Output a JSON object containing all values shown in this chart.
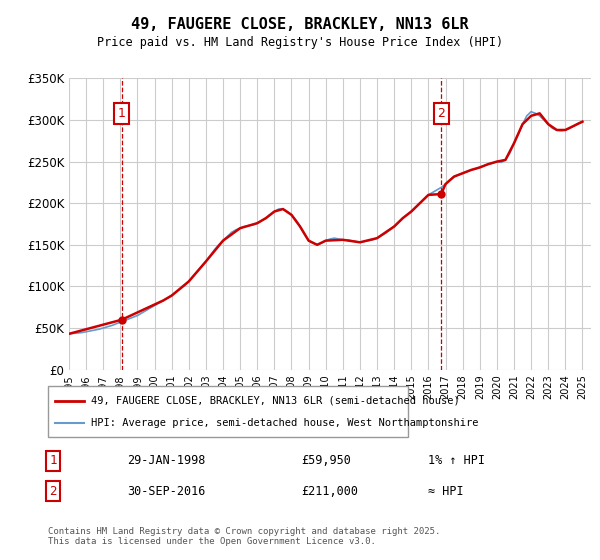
{
  "title": "49, FAUGERE CLOSE, BRACKLEY, NN13 6LR",
  "subtitle": "Price paid vs. HM Land Registry's House Price Index (HPI)",
  "ylabel_ticks": [
    "£0",
    "£50K",
    "£100K",
    "£150K",
    "£200K",
    "£250K",
    "£300K",
    "£350K"
  ],
  "ylim": [
    0,
    350000
  ],
  "xlim_start": 1995.0,
  "xlim_end": 2025.5,
  "sale1": {
    "date_num": 1998.08,
    "price": 59950,
    "label": "1"
  },
  "sale2": {
    "date_num": 2016.75,
    "price": 211000,
    "label": "2"
  },
  "legend_line1": "49, FAUGERE CLOSE, BRACKLEY, NN13 6LR (semi-detached house)",
  "legend_line2": "HPI: Average price, semi-detached house, West Northamptonshire",
  "annotation1_date": "29-JAN-1998",
  "annotation1_price": "£59,950",
  "annotation1_hpi": "1% ↑ HPI",
  "annotation2_date": "30-SEP-2016",
  "annotation2_price": "£211,000",
  "annotation2_hpi": "≈ HPI",
  "footer": "Contains HM Land Registry data © Crown copyright and database right 2025.\nThis data is licensed under the Open Government Licence v3.0.",
  "line_color": "#cc0000",
  "hpi_color": "#6699cc",
  "bg_color": "#ffffff",
  "grid_color": "#cccccc",
  "annotation_box_color": "#cc0000",
  "hpi_data_x": [
    1995.0,
    1995.25,
    1995.5,
    1995.75,
    1996.0,
    1996.25,
    1996.5,
    1996.75,
    1997.0,
    1997.25,
    1997.5,
    1997.75,
    1998.0,
    1998.25,
    1998.5,
    1998.75,
    1999.0,
    1999.25,
    1999.5,
    1999.75,
    2000.0,
    2000.25,
    2000.5,
    2000.75,
    2001.0,
    2001.25,
    2001.5,
    2001.75,
    2002.0,
    2002.25,
    2002.5,
    2002.75,
    2003.0,
    2003.25,
    2003.5,
    2003.75,
    2004.0,
    2004.25,
    2004.5,
    2004.75,
    2005.0,
    2005.25,
    2005.5,
    2005.75,
    2006.0,
    2006.25,
    2006.5,
    2006.75,
    2007.0,
    2007.25,
    2007.5,
    2007.75,
    2008.0,
    2008.25,
    2008.5,
    2008.75,
    2009.0,
    2009.25,
    2009.5,
    2009.75,
    2010.0,
    2010.25,
    2010.5,
    2010.75,
    2011.0,
    2011.25,
    2011.5,
    2011.75,
    2012.0,
    2012.25,
    2012.5,
    2012.75,
    2013.0,
    2013.25,
    2013.5,
    2013.75,
    2014.0,
    2014.25,
    2014.5,
    2014.75,
    2015.0,
    2015.25,
    2015.5,
    2015.75,
    2016.0,
    2016.25,
    2016.5,
    2016.75,
    2017.0,
    2017.25,
    2017.5,
    2017.75,
    2018.0,
    2018.25,
    2018.5,
    2018.75,
    2019.0,
    2019.25,
    2019.5,
    2019.75,
    2020.0,
    2020.25,
    2020.5,
    2020.75,
    2021.0,
    2021.25,
    2021.5,
    2021.75,
    2022.0,
    2022.25,
    2022.5,
    2022.75,
    2023.0,
    2023.25,
    2023.5,
    2023.75,
    2024.0,
    2024.25,
    2024.5,
    2024.75,
    2025.0
  ],
  "hpi_data_y": [
    43000,
    43500,
    44000,
    44500,
    45500,
    46500,
    47500,
    48500,
    50000,
    51500,
    53000,
    55000,
    57000,
    59000,
    61000,
    63000,
    65000,
    68000,
    71000,
    74000,
    77000,
    80000,
    83000,
    86000,
    89000,
    93000,
    97000,
    101000,
    106000,
    112000,
    118000,
    124000,
    130000,
    137000,
    144000,
    150000,
    155000,
    160000,
    165000,
    168000,
    170000,
    172000,
    173000,
    174000,
    176000,
    179000,
    182000,
    186000,
    190000,
    193000,
    193000,
    190000,
    186000,
    180000,
    172000,
    163000,
    155000,
    152000,
    150000,
    152000,
    155000,
    157000,
    158000,
    157000,
    156000,
    156000,
    155000,
    154000,
    153000,
    154000,
    155000,
    156000,
    158000,
    161000,
    164000,
    168000,
    172000,
    177000,
    182000,
    186000,
    190000,
    195000,
    200000,
    205000,
    210000,
    213000,
    216000,
    219000,
    223000,
    228000,
    232000,
    234000,
    236000,
    238000,
    240000,
    241000,
    243000,
    245000,
    247000,
    248000,
    250000,
    249000,
    252000,
    260000,
    272000,
    283000,
    295000,
    305000,
    310000,
    308000,
    305000,
    300000,
    295000,
    290000,
    288000,
    287000,
    288000,
    290000,
    293000,
    296000,
    298000
  ],
  "price_data_x": [
    1995.0,
    1998.08,
    1998.08,
    2000.5,
    2001.0,
    2002.0,
    2003.0,
    2004.0,
    2005.0,
    2006.0,
    2006.5,
    2007.0,
    2007.5,
    2008.0,
    2008.5,
    2009.0,
    2009.5,
    2010.0,
    2011.0,
    2012.0,
    2013.0,
    2014.0,
    2014.5,
    2015.0,
    2015.5,
    2016.0,
    2016.75,
    2016.75,
    2017.0,
    2017.5,
    2018.0,
    2018.5,
    2019.0,
    2019.5,
    2020.0,
    2020.5,
    2021.0,
    2021.5,
    2022.0,
    2022.5,
    2023.0,
    2023.5,
    2024.0,
    2024.5,
    2025.0
  ],
  "price_data_y": [
    43000,
    59950,
    59950,
    83000,
    89000,
    106000,
    130000,
    155000,
    170000,
    176000,
    182000,
    190000,
    193000,
    186000,
    172000,
    155000,
    150000,
    155000,
    156000,
    153000,
    158000,
    172000,
    182000,
    190000,
    200000,
    210000,
    211000,
    211000,
    223000,
    232000,
    236000,
    240000,
    243000,
    247000,
    250000,
    252000,
    272000,
    295000,
    305000,
    308000,
    295000,
    288000,
    288000,
    293000,
    298000
  ]
}
